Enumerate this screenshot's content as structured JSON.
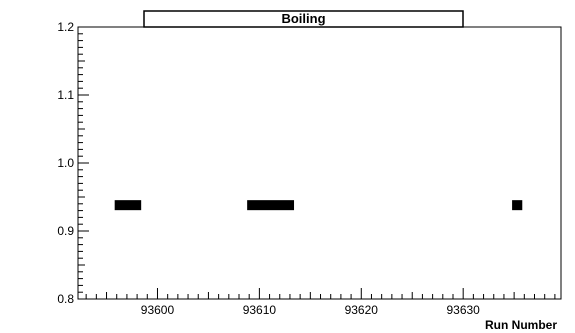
{
  "chart_data": {
    "type": "bar",
    "title": "Boiling",
    "xlabel": "Run Number",
    "ylabel": "",
    "xlim": [
      93592.2,
      93639.6
    ],
    "ylim": [
      0.8,
      1.2
    ],
    "x_ticks": [
      93600,
      93610,
      93620,
      93630
    ],
    "x_tick_labels": [
      "93600",
      "93610",
      "93620",
      "93630"
    ],
    "y_ticks": [
      0.8,
      0.9,
      1.0,
      1.1,
      1.2
    ],
    "y_tick_labels": [
      "0.8",
      "0.9",
      "1.0",
      "1.1",
      "1.2"
    ],
    "segments": [
      {
        "x_start": 93595.8,
        "x_end": 93598.4,
        "y": 0.938
      },
      {
        "x_start": 93608.8,
        "x_end": 93613.4,
        "y": 0.938
      },
      {
        "x_start": 93634.8,
        "x_end": 93635.8,
        "y": 0.938
      }
    ],
    "grid": false,
    "colors": {
      "marker": "#000000",
      "frame": "#000000",
      "background": "#ffffff"
    }
  }
}
